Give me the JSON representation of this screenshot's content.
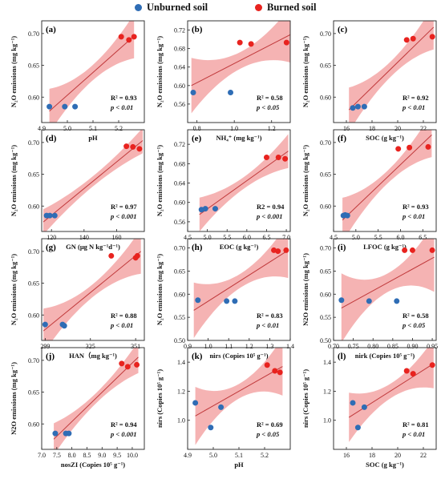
{
  "legend": {
    "unburned": {
      "label": "Unburned soil",
      "color": "#2f6db5"
    },
    "burned": {
      "label": "Burned soil",
      "color": "#e8231f"
    }
  },
  "colors": {
    "band": "#f29a9a",
    "fit": "#c0393b"
  },
  "chart_data": [
    {
      "type": "scatter",
      "panel": "(a)",
      "xlabel": "pH",
      "ylabel": "N₂O emissions (mg kg⁻¹)",
      "xlim": [
        4.9,
        5.3
      ],
      "ylim": [
        0.56,
        0.72
      ],
      "xticks": [
        4.9,
        5.0,
        5.1,
        5.2
      ],
      "xtick_labels": [
        "4.9",
        "5.0",
        "5.1",
        "5.2"
      ],
      "yticks": [
        0.6,
        0.65,
        0.7
      ],
      "ytick_labels": [
        "0.60",
        "0.65",
        "0.70"
      ],
      "series": [
        {
          "name": "Unburned soil",
          "points": [
            [
              4.93,
              0.585
            ],
            [
              4.99,
              0.585
            ],
            [
              5.03,
              0.585
            ]
          ]
        },
        {
          "name": "Burned soil",
          "points": [
            [
              5.21,
              0.695
            ],
            [
              5.24,
              0.69
            ],
            [
              5.26,
              0.695
            ]
          ]
        }
      ],
      "fit": [
        [
          4.93,
          0.578
        ],
        [
          5.26,
          0.696
        ]
      ],
      "band": [
        0.012,
        0.035
      ],
      "r2": "R² = 0.93",
      "p": "p < 0.01"
    },
    {
      "type": "scatter",
      "panel": "(b)",
      "xlabel": "NH₄⁺ (mg kg⁻¹)",
      "ylabel": "N₂O emissions (mg kg⁻¹)",
      "xlim": [
        0.75,
        1.3
      ],
      "ylim": [
        0.52,
        0.74
      ],
      "xticks": [
        0.8,
        1.0,
        1.2
      ],
      "xtick_labels": [
        "0.8",
        "1.0",
        "1.2"
      ],
      "yticks": [
        0.56,
        0.6,
        0.64,
        0.68,
        0.72
      ],
      "ytick_labels": [
        "0.56",
        "0.60",
        "0.64",
        "0.68",
        "0.72"
      ],
      "series": [
        {
          "name": "Unburned soil",
          "points": [
            [
              0.78,
              0.585
            ],
            [
              0.98,
              0.585
            ]
          ]
        },
        {
          "name": "Burned soil",
          "points": [
            [
              1.03,
              0.693
            ],
            [
              1.09,
              0.69
            ],
            [
              1.28,
              0.693
            ]
          ]
        }
      ],
      "fit": [
        [
          0.77,
          0.6
        ],
        [
          1.3,
          0.71
        ]
      ],
      "band": [
        0.018,
        0.06
      ],
      "r2": "R² = 0.58",
      "p": "p < 0.05"
    },
    {
      "type": "scatter",
      "panel": "(c)",
      "xlabel": "SOC (g kg⁻¹)",
      "ylabel": "N₂O emissions (mg kg⁻¹)",
      "xlim": [
        15,
        23
      ],
      "ylim": [
        0.56,
        0.72
      ],
      "xticks": [
        16,
        18,
        20,
        22
      ],
      "xtick_labels": [
        "16",
        "18",
        "20",
        "22"
      ],
      "yticks": [
        0.6,
        0.65,
        0.7
      ],
      "ytick_labels": [
        "0.60",
        "0.65",
        "0.70"
      ],
      "series": [
        {
          "name": "Unburned soil",
          "points": [
            [
              16.5,
              0.583
            ],
            [
              16.9,
              0.585
            ],
            [
              17.4,
              0.585
            ]
          ]
        },
        {
          "name": "Burned soil",
          "points": [
            [
              20.7,
              0.69
            ],
            [
              21.2,
              0.692
            ],
            [
              22.7,
              0.695
            ]
          ]
        }
      ],
      "fit": [
        [
          16.2,
          0.58
        ],
        [
          22.8,
          0.71
        ]
      ],
      "band": [
        0.012,
        0.035
      ],
      "r2": "R² = 0.92",
      "p": "p < 0.01"
    },
    {
      "type": "scatter",
      "panel": "(d)",
      "xlabel": "GN (μg N kg⁻¹d⁻¹)",
      "ylabel": "N₂O emissions (mg kg⁻¹)",
      "xlim": [
        114,
        177
      ],
      "ylim": [
        0.56,
        0.72
      ],
      "xticks": [
        120,
        140,
        160
      ],
      "xtick_labels": [
        "120",
        "140",
        "160"
      ],
      "yticks": [
        0.6,
        0.65,
        0.7
      ],
      "ytick_labels": [
        "0.60",
        "0.65",
        "0.70"
      ],
      "series": [
        {
          "name": "Unburned soil",
          "points": [
            [
              117,
              0.585
            ],
            [
              119,
              0.585
            ],
            [
              122,
              0.585
            ]
          ]
        },
        {
          "name": "Burned soil",
          "points": [
            [
              166,
              0.694
            ],
            [
              170,
              0.693
            ],
            [
              174,
              0.69
            ]
          ]
        }
      ],
      "fit": [
        [
          115,
          0.575
        ],
        [
          176,
          0.703
        ]
      ],
      "band": [
        0.008,
        0.02
      ],
      "r2": "R² = 0.97",
      "p": "p < 0.001"
    },
    {
      "type": "scatter",
      "panel": "(e)",
      "xlabel": "EOC (g kg⁻¹)",
      "ylabel": "N₂O emissions (mg kg⁻¹)",
      "xlim": [
        4.5,
        7.1
      ],
      "ylim": [
        0.54,
        0.75
      ],
      "xticks": [
        4.5,
        5.0,
        5.5,
        6.0,
        6.5,
        7.0
      ],
      "xtick_labels": [
        "4.5",
        "5.0",
        "5.5",
        "6.0",
        "6.5",
        "7.0"
      ],
      "yticks": [
        0.56,
        0.6,
        0.64,
        0.68,
        0.72
      ],
      "ytick_labels": [
        "0.56",
        "0.60",
        "0.64",
        "0.68",
        "0.72"
      ],
      "series": [
        {
          "name": "Unburned soil",
          "points": [
            [
              4.85,
              0.585
            ],
            [
              4.95,
              0.587
            ],
            [
              5.2,
              0.587
            ]
          ]
        },
        {
          "name": "Burned soil",
          "points": [
            [
              6.5,
              0.693
            ],
            [
              6.8,
              0.693
            ],
            [
              6.97,
              0.69
            ]
          ]
        }
      ],
      "fit": [
        [
          4.8,
          0.575
        ],
        [
          7.05,
          0.706
        ]
      ],
      "band": [
        0.012,
        0.035
      ],
      "r2": "R2 = 0.94",
      "p": "p < 0.001"
    },
    {
      "type": "scatter",
      "panel": "(f)",
      "xlabel": "LFOC (g kg⁻¹)",
      "ylabel": "N₂O emissions (mg kg⁻¹)",
      "xlim": [
        4.5,
        6.8
      ],
      "ylim": [
        0.56,
        0.72
      ],
      "xticks": [
        4.5,
        5.0,
        5.5,
        6.0,
        6.5
      ],
      "xtick_labels": [
        "4.5",
        "5.0",
        "5.5",
        "6.0",
        "6.5"
      ],
      "yticks": [
        0.6,
        0.65,
        0.7
      ],
      "ytick_labels": [
        "0.60",
        "0.65",
        "0.70"
      ],
      "series": [
        {
          "name": "Unburned soil",
          "points": [
            [
              4.72,
              0.585
            ],
            [
              4.76,
              0.586
            ],
            [
              4.81,
              0.585
            ]
          ]
        },
        {
          "name": "Burned soil",
          "points": [
            [
              5.95,
              0.69
            ],
            [
              6.2,
              0.692
            ],
            [
              6.62,
              0.693
            ]
          ]
        }
      ],
      "fit": [
        [
          4.7,
          0.578
        ],
        [
          6.7,
          0.712
        ]
      ],
      "band": [
        0.01,
        0.035
      ],
      "r2": "R² = 0.93",
      "p": "p < 0.01"
    },
    {
      "type": "scatter",
      "panel": "(g)",
      "xlabel": "HAN（mg kg⁻¹)",
      "ylabel": "N₂O emissions (mg kg⁻¹)",
      "xlim": [
        297,
        356
      ],
      "ylim": [
        0.56,
        0.72
      ],
      "xticks": [
        299,
        325,
        351
      ],
      "xtick_labels": [
        "299",
        "325",
        "351"
      ],
      "yticks": [
        0.6,
        0.65,
        0.7
      ],
      "ytick_labels": [
        "0.60",
        "0.65",
        "0.70"
      ],
      "series": [
        {
          "name": "Unburned soil",
          "points": [
            [
              299,
              0.585
            ],
            [
              309,
              0.585
            ],
            [
              310,
              0.583
            ]
          ]
        },
        {
          "name": "Burned soil",
          "points": [
            [
              337,
              0.693
            ],
            [
              351,
              0.69
            ],
            [
              352,
              0.693
            ]
          ]
        }
      ],
      "fit": [
        [
          298,
          0.575
        ],
        [
          354,
          0.7
        ]
      ],
      "band": [
        0.01,
        0.035
      ],
      "r2": "R² = 0.88",
      "p": "p < 0.01"
    },
    {
      "type": "scatter",
      "panel": "(h)",
      "xlabel": "nirs (Copies 10⁵ g⁻¹)",
      "ylabel": "N₂O emissions (mg kg⁻¹)",
      "xlim": [
        0.9,
        1.4
      ],
      "ylim": [
        0.5,
        0.72
      ],
      "xticks": [
        0.9,
        1.0,
        1.1,
        1.2,
        1.3,
        1.4
      ],
      "xtick_labels": [
        "0.9",
        "1.0",
        "1.1",
        "1.2",
        "1.3",
        "1.4"
      ],
      "yticks": [
        0.5,
        0.55,
        0.6,
        0.65,
        0.7
      ],
      "ytick_labels": [
        "0.50",
        "0.55",
        "0.60",
        "0.65",
        "0.70"
      ],
      "series": [
        {
          "name": "Unburned soil",
          "points": [
            [
              0.95,
              0.587
            ],
            [
              1.09,
              0.585
            ],
            [
              1.13,
              0.585
            ]
          ]
        },
        {
          "name": "Burned soil",
          "points": [
            [
              1.32,
              0.695
            ],
            [
              1.34,
              0.693
            ],
            [
              1.38,
              0.695
            ]
          ]
        }
      ],
      "fit": [
        [
          0.93,
          0.565
        ],
        [
          1.39,
          0.695
        ]
      ],
      "band": [
        0.015,
        0.06
      ],
      "r2": "R² = 0.83",
      "p": "p < 0.01"
    },
    {
      "type": "scatter",
      "panel": "(i)",
      "xlabel": "nirk (Copies 10⁵ g⁻¹)",
      "ylabel": "N2O emissions (mg kg⁻¹)",
      "xlim": [
        0.7,
        0.96
      ],
      "ylim": [
        0.5,
        0.72
      ],
      "xticks": [
        0.7,
        0.75,
        0.8,
        0.85,
        0.9,
        0.95
      ],
      "xtick_labels": [
        "0.70",
        "0.75",
        "0.80",
        "0.85",
        "0.90",
        "0.95"
      ],
      "yticks": [
        0.5,
        0.55,
        0.6,
        0.65,
        0.7
      ],
      "ytick_labels": [
        "0.50",
        "0.55",
        "0.60",
        "0.65",
        "0.70"
      ],
      "series": [
        {
          "name": "Unburned soil",
          "points": [
            [
              0.72,
              0.587
            ],
            [
              0.79,
              0.585
            ],
            [
              0.86,
              0.585
            ]
          ]
        },
        {
          "name": "Burned soil",
          "points": [
            [
              0.88,
              0.695
            ],
            [
              0.9,
              0.695
            ],
            [
              0.95,
              0.695
            ]
          ]
        }
      ],
      "fit": [
        [
          0.72,
          0.57
        ],
        [
          0.955,
          0.68
        ]
      ],
      "band": [
        0.02,
        0.075
      ],
      "r2": "R² = 0.58",
      "p": "p < 0.05"
    },
    {
      "type": "scatter",
      "panel": "(j)",
      "xlabel": "nosZI (Copies 10⁵ g⁻¹)",
      "ylabel": "N2O emissions (mg kg⁻¹)",
      "xlim": [
        7.0,
        10.4
      ],
      "ylim": [
        0.56,
        0.72
      ],
      "xticks": [
        7.0,
        7.5,
        8.0,
        8.5,
        9.0,
        9.5,
        10.0
      ],
      "xtick_labels": [
        "7.0",
        "7.5",
        "8.0",
        "8.5",
        "9.0",
        "9.5",
        "10.0"
      ],
      "yticks": [
        0.6,
        0.65,
        0.7
      ],
      "ytick_labels": [
        "0.60",
        "0.65",
        "0.70"
      ],
      "series": [
        {
          "name": "Unburned soil",
          "points": [
            [
              7.45,
              0.585
            ],
            [
              7.8,
              0.585
            ],
            [
              7.9,
              0.585
            ]
          ]
        },
        {
          "name": "Burned soil",
          "points": [
            [
              9.65,
              0.695
            ],
            [
              9.85,
              0.69
            ],
            [
              10.15,
              0.693
            ]
          ]
        }
      ],
      "fit": [
        [
          7.4,
          0.576
        ],
        [
          10.2,
          0.705
        ]
      ],
      "band": [
        0.008,
        0.025
      ],
      "r2": "R² = 0.94",
      "p": "p < 0.001"
    },
    {
      "type": "scatter",
      "panel": "(k)",
      "xlabel": "pH",
      "ylabel": "nirs (Copies 10⁵ g⁻¹)",
      "xlim": [
        4.9,
        5.3
      ],
      "ylim": [
        0.8,
        1.5
      ],
      "xticks": [
        4.9,
        5.0,
        5.1,
        5.2
      ],
      "xtick_labels": [
        "4.9",
        "5.0",
        "5.1",
        "5.2"
      ],
      "yticks": [
        1.0,
        1.2,
        1.4
      ],
      "ytick_labels": [
        "1.0",
        "1.2",
        "1.4"
      ],
      "series": [
        {
          "name": "Unburned soil",
          "points": [
            [
              4.93,
              1.12
            ],
            [
              4.99,
              0.95
            ],
            [
              5.03,
              1.09
            ]
          ]
        },
        {
          "name": "Burned soil",
          "points": [
            [
              5.21,
              1.38
            ],
            [
              5.24,
              1.34
            ],
            [
              5.26,
              1.33
            ]
          ]
        }
      ],
      "fit": [
        [
          4.93,
          1.03
        ],
        [
          5.27,
          1.37
        ]
      ],
      "band": [
        0.05,
        0.2
      ],
      "r2": "R² = 0.69",
      "p": "p < 0.05"
    },
    {
      "type": "scatter",
      "panel": "(l)",
      "xlabel": "SOC (g kg⁻¹)",
      "ylabel": "nirs (Copies 10⁵ g⁻¹)",
      "xlim": [
        15,
        23
      ],
      "ylim": [
        0.8,
        1.5
      ],
      "xticks": [
        16,
        18,
        20,
        22
      ],
      "xtick_labels": [
        "16",
        "18",
        "20",
        "22"
      ],
      "yticks": [
        1.0,
        1.2,
        1.4
      ],
      "ytick_labels": [
        "1.0",
        "1.2",
        "1.4"
      ],
      "series": [
        {
          "name": "Unburned soil",
          "points": [
            [
              16.5,
              1.12
            ],
            [
              16.9,
              0.95
            ],
            [
              17.4,
              1.09
            ]
          ]
        },
        {
          "name": "Burned soil",
          "points": [
            [
              20.7,
              1.34
            ],
            [
              21.2,
              1.32
            ],
            [
              22.7,
              1.38
            ]
          ]
        }
      ],
      "fit": [
        [
          16.2,
          1.02
        ],
        [
          22.8,
          1.39
        ]
      ],
      "band": [
        0.05,
        0.17
      ],
      "r2": "R² = 0.81",
      "p": "p < 0.01"
    }
  ]
}
